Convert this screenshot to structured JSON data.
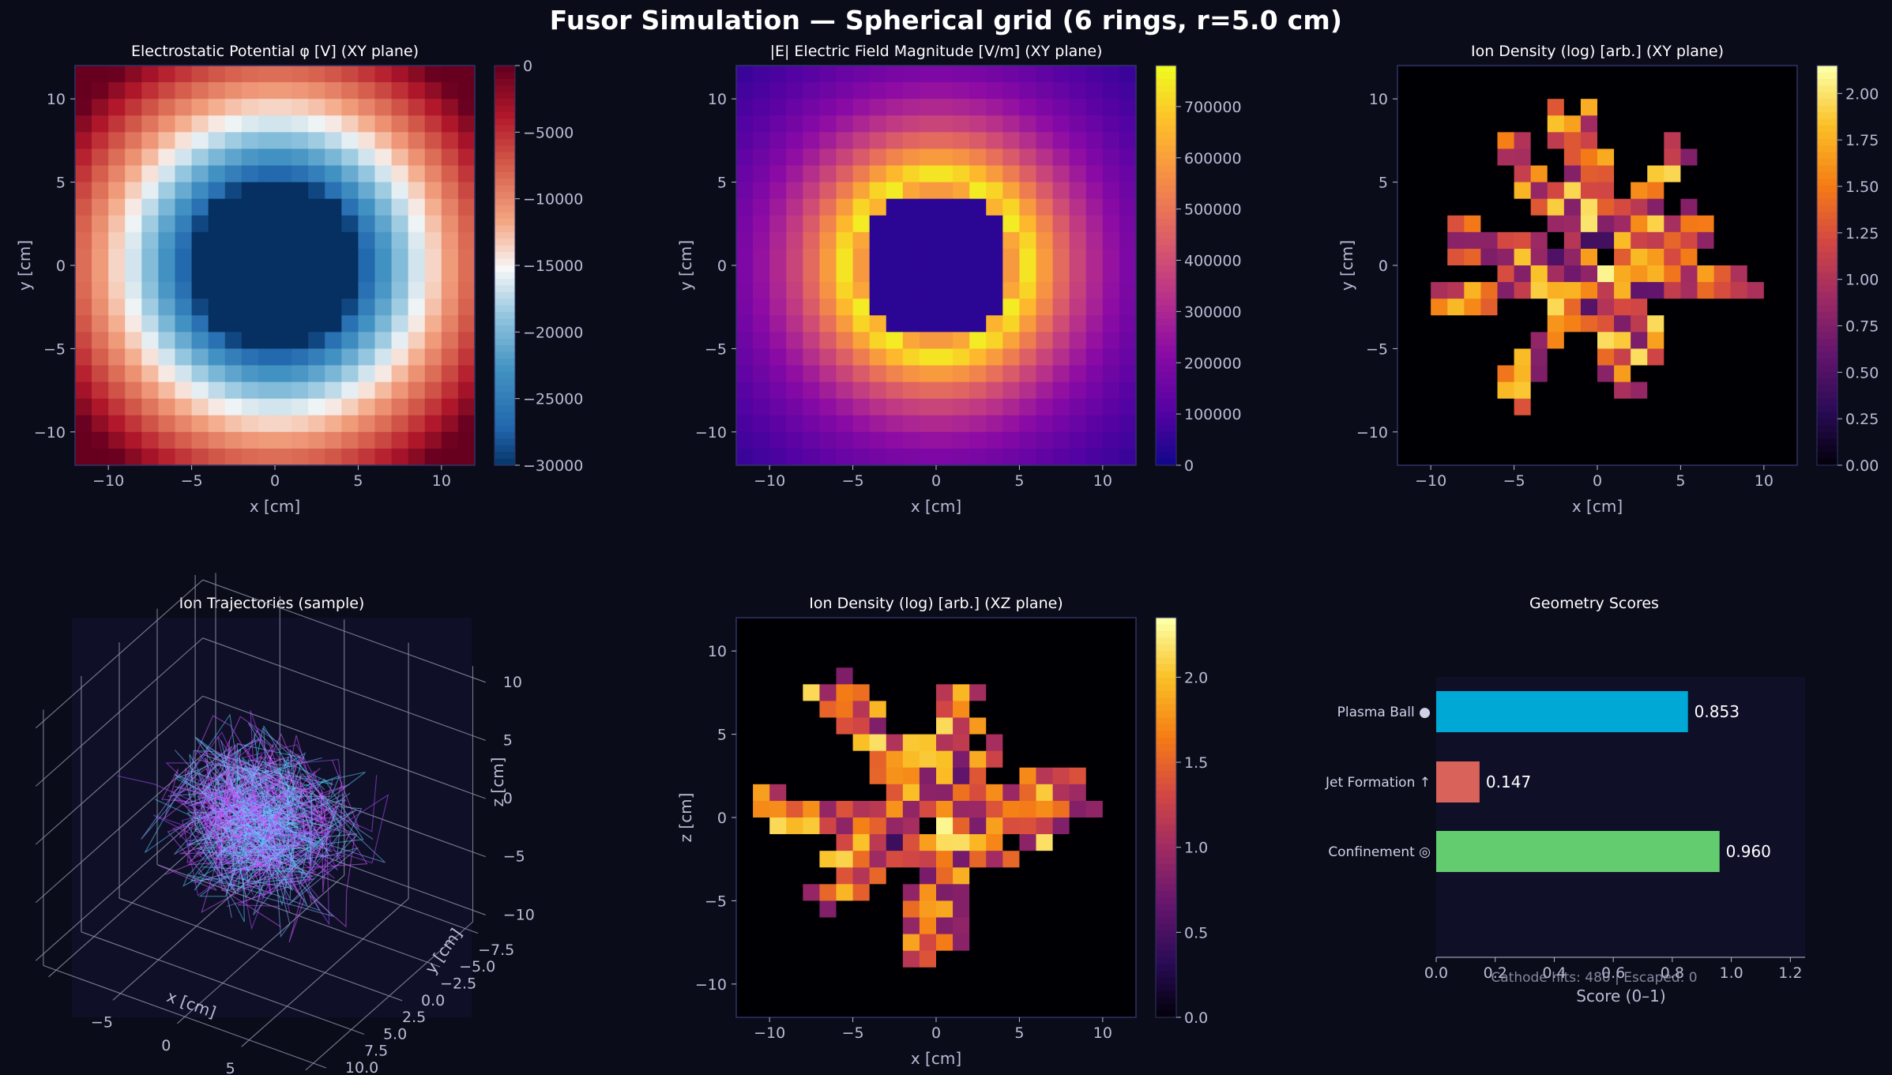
{
  "figure": {
    "title": "Fusor Simulation — Spherical grid (6 rings, r=5.0 cm)",
    "background": "#0b0c1a",
    "panel_background": "#0f1028",
    "text_color": "#cfd2e6"
  },
  "chart_data": [
    {
      "type": "heatmap",
      "title": "Electrostatic Potential φ [V]  (XY plane)",
      "xlabel": "x [cm]",
      "ylabel": "y [cm]",
      "xlim": [
        -12,
        12
      ],
      "ylim": [
        -12,
        12
      ],
      "xticks": [
        "−10",
        "−5",
        "0",
        "5",
        "10"
      ],
      "yticks": [
        "10",
        "5",
        "0",
        "−5",
        "−10"
      ],
      "colormap": "RdBu_r",
      "colorbar_ticks": [
        "0",
        "−5000",
        "−10000",
        "−15000",
        "−20000",
        "−25000",
        "−30000"
      ],
      "range": [
        -30000,
        0
      ],
      "field": {
        "model": "potential",
        "cathode_radius_cm": 5.0,
        "cathode_V": -30000,
        "anode_V": 0
      }
    },
    {
      "type": "heatmap",
      "title": "|E| Electric Field Magnitude [V/m]  (XY plane)",
      "xlabel": "x [cm]",
      "ylabel": "y [cm]",
      "xlim": [
        -12,
        12
      ],
      "ylim": [
        -12,
        12
      ],
      "xticks": [
        "−10",
        "−5",
        "0",
        "5",
        "10"
      ],
      "yticks": [
        "10",
        "5",
        "0",
        "−5",
        "−10"
      ],
      "colormap": "plasma",
      "colorbar_ticks": [
        "0",
        "100000",
        "200000",
        "300000",
        "400000",
        "500000",
        "600000",
        "700000"
      ],
      "range": [
        0,
        780000
      ],
      "field": {
        "model": "efield",
        "cathode_radius_cm": 5.0,
        "peak_V_per_m": 780000
      }
    },
    {
      "type": "heatmap",
      "title": "Ion Density (log) [arb.]  (XY plane)",
      "xlabel": "x [cm]",
      "ylabel": "y [cm]",
      "xlim": [
        -12,
        12
      ],
      "ylim": [
        -12,
        12
      ],
      "xticks": [
        "−10",
        "−5",
        "0",
        "5",
        "10"
      ],
      "yticks": [
        "10",
        "5",
        "0",
        "−5",
        "−10"
      ],
      "colormap": "inferno",
      "colorbar_ticks": [
        "2.00",
        "1.75",
        "1.50",
        "1.25",
        "1.00",
        "0.75",
        "0.50",
        "0.25",
        "0.00"
      ],
      "range": [
        0,
        2.15
      ],
      "field": {
        "model": "density",
        "seed": 7,
        "max": 2.1,
        "rays": 10
      }
    },
    {
      "type": "scatter",
      "subtype": "3d-trajectories",
      "title": "Ion Trajectories (sample)",
      "xlabel": "x [cm]",
      "ylabel": "y [cm]",
      "zlabel": "z [cm]",
      "xticks": [
        "−5",
        "0",
        "5",
        "10"
      ],
      "yticks": [
        "10.0",
        "7.5",
        "5.0",
        "2.5",
        "0.0",
        "−2.5",
        "−5.0",
        "−7.5"
      ],
      "zticks": [
        "10",
        "5",
        "0",
        "−5",
        "−10"
      ],
      "line_colors": [
        "#b44bff",
        "#5ad2ff",
        "#d65bff",
        "#7fb6ff"
      ],
      "sample_count": 140
    },
    {
      "type": "heatmap",
      "title": "Ion Density (log) [arb.]  (XZ plane)",
      "xlabel": "x [cm]",
      "ylabel": "z [cm]",
      "xlim": [
        -12,
        12
      ],
      "ylim": [
        -12,
        12
      ],
      "xticks": [
        "−10",
        "−5",
        "0",
        "5",
        "10"
      ],
      "yticks": [
        "10",
        "5",
        "0",
        "−5",
        "−10"
      ],
      "colormap": "inferno",
      "colorbar_ticks": [
        "2.0",
        "1.5",
        "1.0",
        "0.5",
        "0.0"
      ],
      "range": [
        0,
        2.35
      ],
      "field": {
        "model": "density",
        "seed": 23,
        "max": 2.3,
        "rays": 12
      }
    },
    {
      "type": "bar",
      "orientation": "horizontal",
      "title": "Geometry Scores",
      "xlabel": "Score (0–1)",
      "xlim": [
        0,
        1.25
      ],
      "xticks": [
        "0.0",
        "0.2",
        "0.4",
        "0.6",
        "0.8",
        "1.0",
        "1.2"
      ],
      "categories": [
        "Plasma Ball ●",
        "Jet Formation ↑",
        "Confinement ◎"
      ],
      "values": [
        0.853,
        0.147,
        0.96
      ],
      "value_labels": [
        "0.853",
        "0.147",
        "0.960"
      ],
      "colors": [
        "#00a8d6",
        "#d9625a",
        "#62cc6e"
      ],
      "footnote": "Cathode hits: 480  |  Escaped: 0"
    }
  ]
}
